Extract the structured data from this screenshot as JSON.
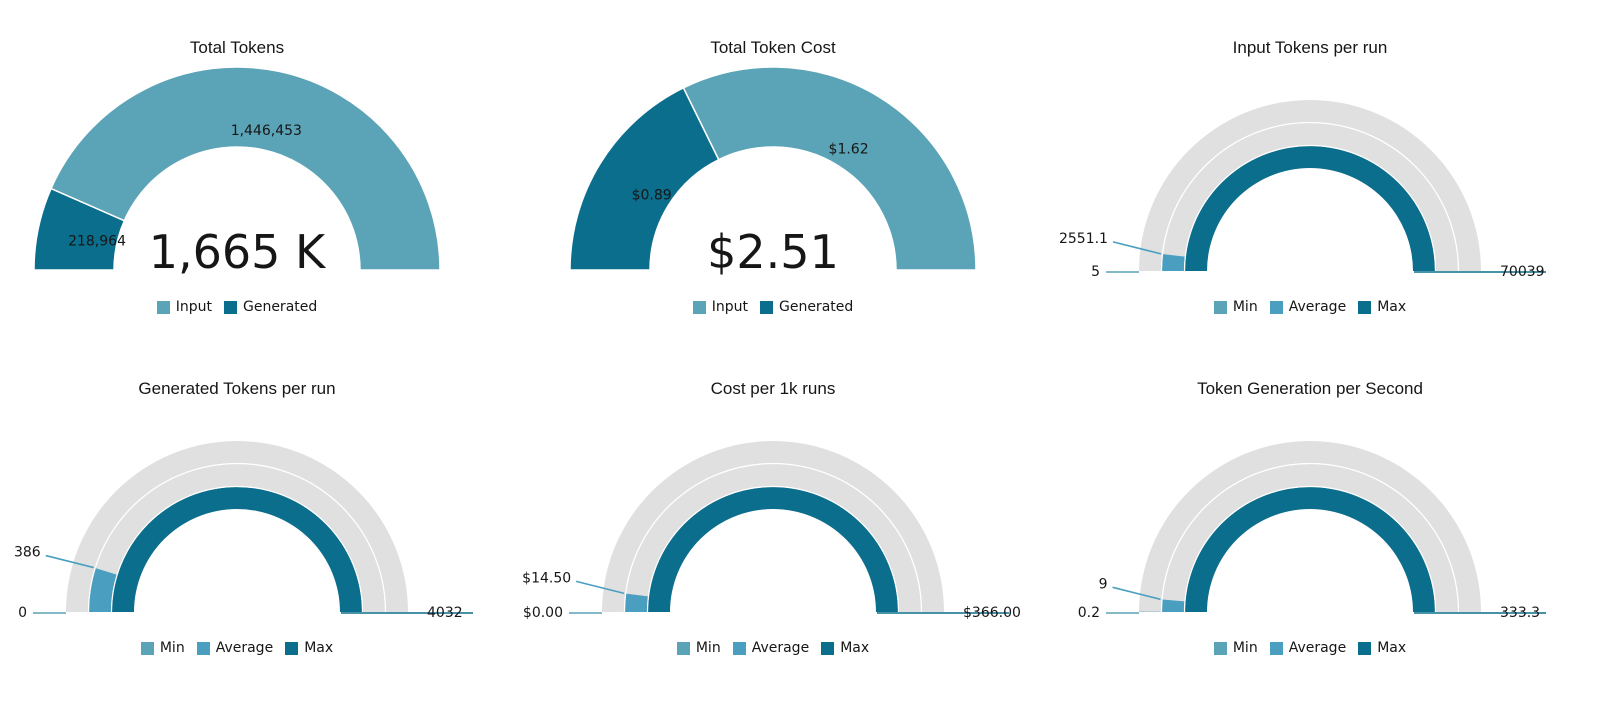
{
  "colors": {
    "input": "#5ba3b6",
    "generated": "#0a6e8c",
    "min": "#5ba3b6",
    "average": "#4a9fc0",
    "max": "#0b6e8c",
    "track": "#e0e0e0"
  },
  "chart_data": [
    {
      "type": "pie",
      "title": "Total Tokens",
      "total_label": "1,665 K",
      "slices": [
        {
          "name": "Generated",
          "value": 218964,
          "label": "218,964"
        },
        {
          "name": "Input",
          "value": 1446453,
          "label": "1,446,453"
        }
      ],
      "legend": [
        "Input",
        "Generated"
      ]
    },
    {
      "type": "pie",
      "title": "Total Token Cost",
      "total_label": "$2.51",
      "slices": [
        {
          "name": "Generated",
          "value": 0.89,
          "label": "$0.89"
        },
        {
          "name": "Input",
          "value": 1.62,
          "label": "$1.62"
        }
      ],
      "legend": [
        "Input",
        "Generated"
      ]
    },
    {
      "type": "bar",
      "title": "Input Tokens per run",
      "series": [
        {
          "name": "Min",
          "value": 5,
          "label": "5"
        },
        {
          "name": "Average",
          "value": 2551.1,
          "label": "2551.1"
        },
        {
          "name": "Max",
          "value": 70039,
          "label": "70039"
        }
      ],
      "max": 70039,
      "legend": [
        "Min",
        "Average",
        "Max"
      ]
    },
    {
      "type": "bar",
      "title": "Generated Tokens per run",
      "series": [
        {
          "name": "Min",
          "value": 0,
          "label": "0"
        },
        {
          "name": "Average",
          "value": 386,
          "label": "386"
        },
        {
          "name": "Max",
          "value": 4032,
          "label": "4032"
        }
      ],
      "max": 4032,
      "legend": [
        "Min",
        "Average",
        "Max"
      ]
    },
    {
      "type": "bar",
      "title": "Cost per 1k runs",
      "series": [
        {
          "name": "Min",
          "value": 0,
          "label": "$0.00"
        },
        {
          "name": "Average",
          "value": 14.5,
          "label": "$14.50"
        },
        {
          "name": "Max",
          "value": 366,
          "label": "$366.00"
        }
      ],
      "max": 366,
      "legend": [
        "Min",
        "Average",
        "Max"
      ]
    },
    {
      "type": "bar",
      "title": "Token Generation per Second",
      "series": [
        {
          "name": "Min",
          "value": 0.2,
          "label": "0.2"
        },
        {
          "name": "Average",
          "value": 9,
          "label": "9"
        },
        {
          "name": "Max",
          "value": 333.3,
          "label": "333.3"
        }
      ],
      "max": 333.3,
      "legend": [
        "Min",
        "Average",
        "Max"
      ]
    }
  ]
}
